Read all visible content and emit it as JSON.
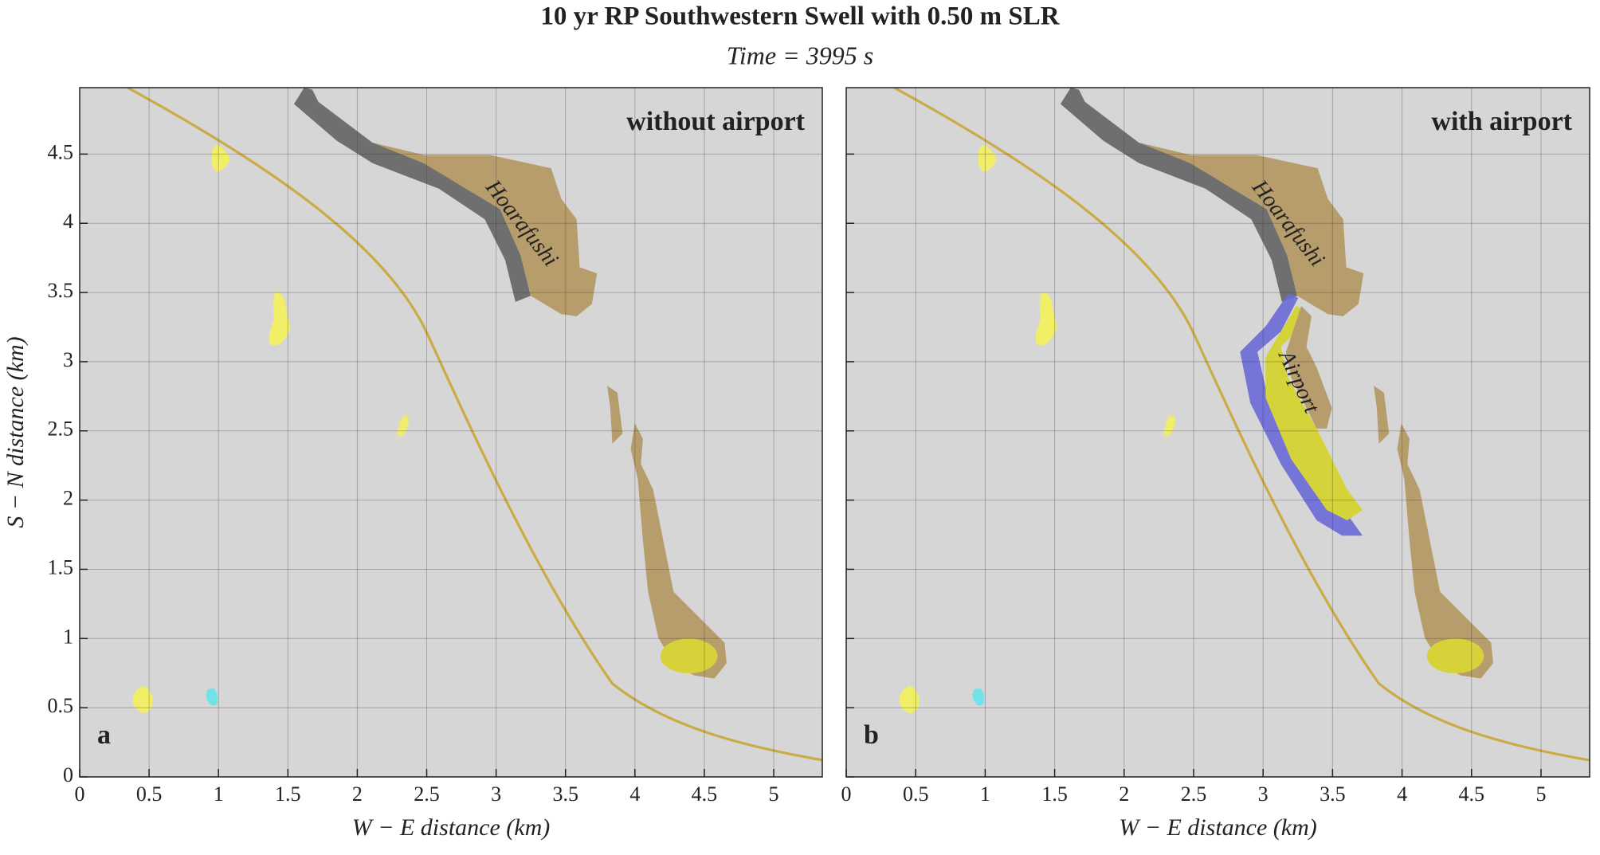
{
  "figure": {
    "title": "10 yr RP Southwestern Swell with 0.50 m SLR",
    "subtitle": "Time = 3995 s"
  },
  "chart_data": [
    {
      "type": "map",
      "panel_label": "a",
      "label": "without airport",
      "annotations": [
        "Hoarafushi"
      ],
      "x_label": "W − E distance (km)",
      "y_label": "S − N distance (km)",
      "xlim": [
        0,
        5.35
      ],
      "ylim": [
        0,
        4.98
      ],
      "xticks": [
        0,
        0.5,
        1,
        1.5,
        2,
        2.5,
        3,
        3.5,
        4,
        4.5,
        5
      ],
      "yticks": [
        0,
        0.5,
        1,
        1.5,
        2,
        2.5,
        3,
        3.5,
        4,
        4.5
      ],
      "grid": true,
      "show_ytick_labels": true,
      "airport": false
    },
    {
      "type": "map",
      "panel_label": "b",
      "label": "with airport",
      "annotations": [
        "Hoarafushi",
        "Airport"
      ],
      "x_label": "W − E distance (km)",
      "xlim": [
        0,
        5.35
      ],
      "ylim": [
        0,
        4.98
      ],
      "xticks": [
        0,
        0.5,
        1,
        1.5,
        2,
        2.5,
        3,
        3.5,
        4,
        4.5,
        5
      ],
      "yticks": [
        0,
        0.5,
        1,
        1.5,
        2,
        2.5,
        3,
        3.5,
        4,
        4.5
      ],
      "grid": true,
      "show_ytick_labels": false,
      "airport": true
    }
  ]
}
